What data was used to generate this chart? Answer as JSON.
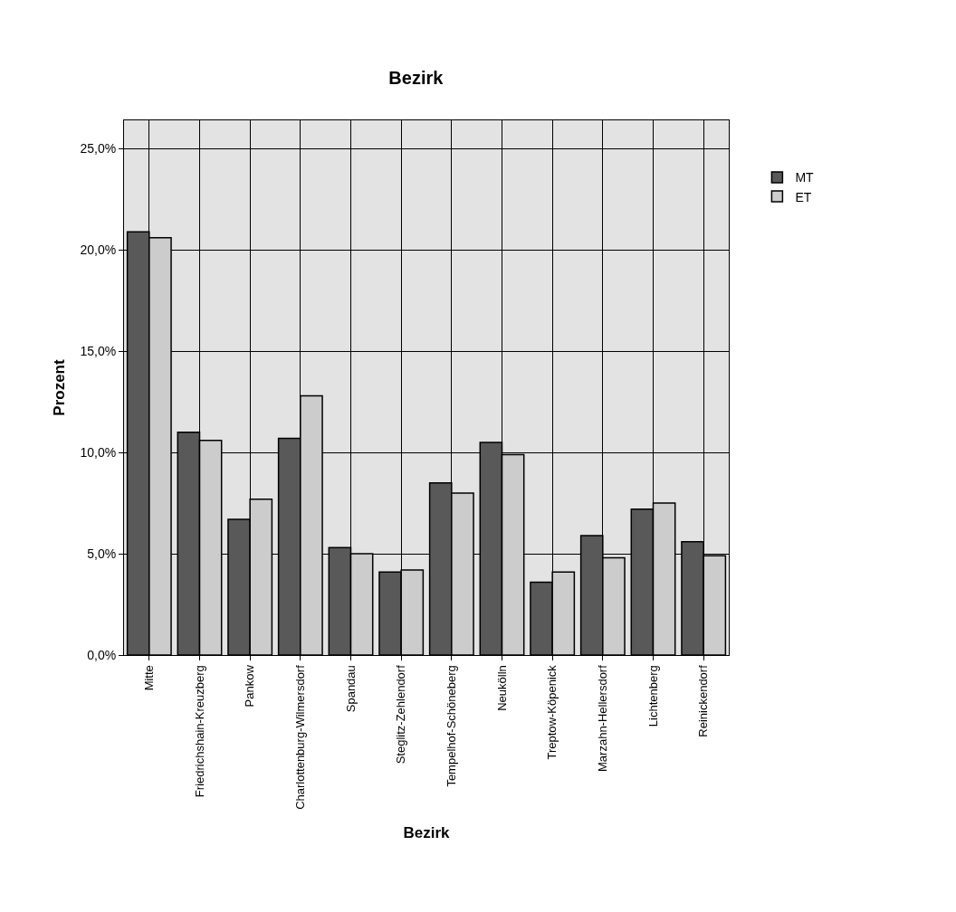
{
  "chart_data": {
    "type": "bar",
    "title": "Bezirk",
    "xlabel": "Bezirk",
    "ylabel": "Prozent",
    "categories": [
      "Mitte",
      "Friedrichshain-Kreuzberg",
      "Pankow",
      "Charlottenburg-Wilmersdorf",
      "Spandau",
      "Steglitz-Zehlendorf",
      "Tempelhof-Schöneberg",
      "Neukölln",
      "Treptow-Köpenick",
      "Marzahn-Hellersdorf",
      "Lichtenberg",
      "Reinickendorf"
    ],
    "series": [
      {
        "name": "MT",
        "color": "#595959",
        "values": [
          20.9,
          11.0,
          6.7,
          10.7,
          5.3,
          4.1,
          8.5,
          10.5,
          3.6,
          5.9,
          7.2,
          5.6
        ]
      },
      {
        "name": "ET",
        "color": "#cccccc",
        "values": [
          20.6,
          10.6,
          7.7,
          12.8,
          5.0,
          4.2,
          8.0,
          9.9,
          4.1,
          4.8,
          7.5,
          4.9
        ]
      }
    ],
    "ylim": [
      0,
      26.4
    ],
    "yticks": [
      {
        "value": 0,
        "label": "0,0%"
      },
      {
        "value": 5,
        "label": "5,0%"
      },
      {
        "value": 10,
        "label": "10,0%"
      },
      {
        "value": 15,
        "label": "15,0%"
      },
      {
        "value": 20,
        "label": "20,0%"
      },
      {
        "value": 25,
        "label": "25,0%"
      }
    ],
    "grid": true,
    "legend": "top right"
  }
}
